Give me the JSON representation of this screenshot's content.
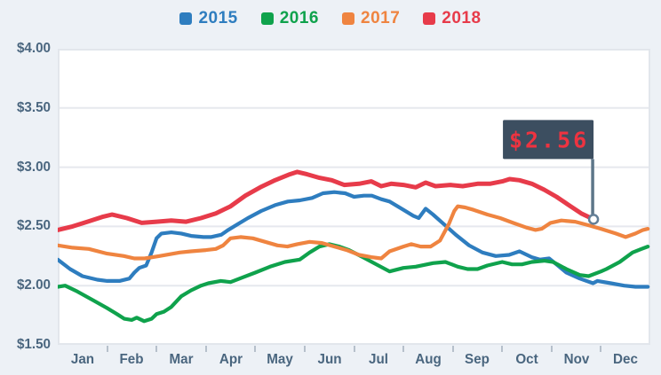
{
  "page": {
    "background": "#edf1f6",
    "plot_background": "#ffffff",
    "border_color": "#e2e6ec",
    "grid_color": "#e6e8ee",
    "label_color": "#4a667f",
    "tick_color": "#b6c0cb"
  },
  "chart_data": {
    "type": "line",
    "title": "",
    "xlabel": "",
    "ylabel": "",
    "grid": true,
    "legend_position": "top",
    "y_ticks": [
      "$4.00",
      "$3.50",
      "$3.00",
      "$2.50",
      "$2.00",
      "$1.50"
    ],
    "y_range": [
      1.5,
      4.0
    ],
    "x_tick_labels": [
      "Jan",
      "Feb",
      "Mar",
      "Apr",
      "May",
      "Jun",
      "Jul",
      "Aug",
      "Sep",
      "Oct",
      "Nov",
      "Dec"
    ],
    "legend": [
      "2015",
      "2016",
      "2017",
      "2018"
    ],
    "series": [
      {
        "name": "2015",
        "color": "#2e7dbf",
        "points": [
          [
            0,
            2.22
          ],
          [
            0.25,
            2.14
          ],
          [
            0.5,
            2.08
          ],
          [
            0.8,
            2.05
          ],
          [
            1.0,
            2.04
          ],
          [
            1.25,
            2.04
          ],
          [
            1.45,
            2.06
          ],
          [
            1.55,
            2.11
          ],
          [
            1.65,
            2.15
          ],
          [
            1.79,
            2.17
          ],
          [
            1.9,
            2.28
          ],
          [
            2.0,
            2.4
          ],
          [
            2.1,
            2.44
          ],
          [
            2.3,
            2.45
          ],
          [
            2.5,
            2.44
          ],
          [
            2.7,
            2.42
          ],
          [
            2.95,
            2.41
          ],
          [
            3.1,
            2.41
          ],
          [
            3.31,
            2.43
          ],
          [
            3.45,
            2.47
          ],
          [
            3.65,
            2.52
          ],
          [
            3.85,
            2.57
          ],
          [
            4.12,
            2.63
          ],
          [
            4.4,
            2.68
          ],
          [
            4.66,
            2.71
          ],
          [
            4.9,
            2.72
          ],
          [
            5.15,
            2.74
          ],
          [
            5.37,
            2.78
          ],
          [
            5.6,
            2.79
          ],
          [
            5.82,
            2.78
          ],
          [
            6.0,
            2.75
          ],
          [
            6.2,
            2.76
          ],
          [
            6.36,
            2.76
          ],
          [
            6.55,
            2.73
          ],
          [
            6.72,
            2.71
          ],
          [
            7.0,
            2.64
          ],
          [
            7.2,
            2.59
          ],
          [
            7.31,
            2.57
          ],
          [
            7.45,
            2.65
          ],
          [
            7.6,
            2.6
          ],
          [
            7.79,
            2.53
          ],
          [
            8.06,
            2.43
          ],
          [
            8.33,
            2.34
          ],
          [
            8.6,
            2.28
          ],
          [
            8.87,
            2.25
          ],
          [
            9.14,
            2.26
          ],
          [
            9.35,
            2.29
          ],
          [
            9.6,
            2.24
          ],
          [
            9.76,
            2.22
          ],
          [
            9.95,
            2.23
          ],
          [
            10.1,
            2.18
          ],
          [
            10.3,
            2.11
          ],
          [
            10.57,
            2.06
          ],
          [
            10.84,
            2.02
          ],
          [
            10.93,
            2.04
          ],
          [
            11.2,
            2.02
          ],
          [
            11.47,
            2.0
          ],
          [
            11.7,
            1.99
          ],
          [
            11.95,
            1.99
          ]
        ]
      },
      {
        "name": "2016",
        "color": "#0fa24c",
        "points": [
          [
            0,
            1.99
          ],
          [
            0.15,
            2.0
          ],
          [
            0.4,
            1.95
          ],
          [
            0.7,
            1.88
          ],
          [
            1.0,
            1.81
          ],
          [
            1.2,
            1.76
          ],
          [
            1.35,
            1.72
          ],
          [
            1.5,
            1.71
          ],
          [
            1.6,
            1.73
          ],
          [
            1.75,
            1.7
          ],
          [
            1.9,
            1.72
          ],
          [
            2.0,
            1.76
          ],
          [
            2.15,
            1.78
          ],
          [
            2.3,
            1.82
          ],
          [
            2.5,
            1.91
          ],
          [
            2.7,
            1.96
          ],
          [
            2.9,
            2.0
          ],
          [
            3.05,
            2.02
          ],
          [
            3.3,
            2.04
          ],
          [
            3.5,
            2.03
          ],
          [
            3.75,
            2.07
          ],
          [
            4.0,
            2.11
          ],
          [
            4.3,
            2.16
          ],
          [
            4.6,
            2.2
          ],
          [
            4.9,
            2.22
          ],
          [
            5.1,
            2.28
          ],
          [
            5.3,
            2.33
          ],
          [
            5.5,
            2.35
          ],
          [
            5.7,
            2.33
          ],
          [
            5.9,
            2.3
          ],
          [
            6.18,
            2.24
          ],
          [
            6.45,
            2.18
          ],
          [
            6.72,
            2.12
          ],
          [
            7.0,
            2.15
          ],
          [
            7.25,
            2.16
          ],
          [
            7.6,
            2.19
          ],
          [
            7.85,
            2.2
          ],
          [
            8.1,
            2.16
          ],
          [
            8.3,
            2.14
          ],
          [
            8.5,
            2.14
          ],
          [
            8.7,
            2.17
          ],
          [
            9.0,
            2.2
          ],
          [
            9.2,
            2.18
          ],
          [
            9.4,
            2.18
          ],
          [
            9.6,
            2.2
          ],
          [
            9.85,
            2.21
          ],
          [
            10.03,
            2.2
          ],
          [
            10.3,
            2.14
          ],
          [
            10.57,
            2.09
          ],
          [
            10.75,
            2.08
          ],
          [
            11.0,
            2.12
          ],
          [
            11.11,
            2.14
          ],
          [
            11.38,
            2.2
          ],
          [
            11.64,
            2.28
          ],
          [
            11.82,
            2.31
          ],
          [
            11.95,
            2.33
          ]
        ]
      },
      {
        "name": "2017",
        "color": "#ef8440",
        "points": [
          [
            0,
            2.34
          ],
          [
            0.3,
            2.32
          ],
          [
            0.63,
            2.31
          ],
          [
            1.0,
            2.27
          ],
          [
            1.34,
            2.25
          ],
          [
            1.55,
            2.23
          ],
          [
            1.76,
            2.23
          ],
          [
            2.06,
            2.25
          ],
          [
            2.47,
            2.28
          ],
          [
            2.7,
            2.29
          ],
          [
            3.0,
            2.3
          ],
          [
            3.2,
            2.31
          ],
          [
            3.35,
            2.34
          ],
          [
            3.5,
            2.4
          ],
          [
            3.7,
            2.41
          ],
          [
            3.95,
            2.4
          ],
          [
            4.2,
            2.37
          ],
          [
            4.45,
            2.34
          ],
          [
            4.65,
            2.33
          ],
          [
            4.85,
            2.35
          ],
          [
            5.1,
            2.37
          ],
          [
            5.35,
            2.36
          ],
          [
            5.6,
            2.33
          ],
          [
            5.85,
            2.3
          ],
          [
            6.1,
            2.26
          ],
          [
            6.35,
            2.24
          ],
          [
            6.55,
            2.23
          ],
          [
            6.72,
            2.29
          ],
          [
            7.0,
            2.33
          ],
          [
            7.16,
            2.35
          ],
          [
            7.35,
            2.33
          ],
          [
            7.55,
            2.33
          ],
          [
            7.74,
            2.38
          ],
          [
            7.92,
            2.52
          ],
          [
            8.03,
            2.63
          ],
          [
            8.1,
            2.67
          ],
          [
            8.25,
            2.66
          ],
          [
            8.42,
            2.64
          ],
          [
            8.7,
            2.6
          ],
          [
            8.96,
            2.57
          ],
          [
            9.22,
            2.53
          ],
          [
            9.49,
            2.49
          ],
          [
            9.67,
            2.47
          ],
          [
            9.8,
            2.48
          ],
          [
            9.98,
            2.53
          ],
          [
            10.2,
            2.55
          ],
          [
            10.48,
            2.54
          ],
          [
            10.75,
            2.51
          ],
          [
            11.0,
            2.48
          ],
          [
            11.3,
            2.44
          ],
          [
            11.5,
            2.41
          ],
          [
            11.7,
            2.44
          ],
          [
            11.85,
            2.47
          ],
          [
            11.95,
            2.48
          ]
        ]
      },
      {
        "name": "2018",
        "color": "#e73b4a",
        "points": [
          [
            0,
            2.47
          ],
          [
            0.3,
            2.5
          ],
          [
            0.6,
            2.54
          ],
          [
            0.9,
            2.58
          ],
          [
            1.1,
            2.6
          ],
          [
            1.4,
            2.57
          ],
          [
            1.7,
            2.53
          ],
          [
            2.0,
            2.54
          ],
          [
            2.3,
            2.55
          ],
          [
            2.6,
            2.54
          ],
          [
            2.9,
            2.57
          ],
          [
            3.2,
            2.61
          ],
          [
            3.5,
            2.67
          ],
          [
            3.8,
            2.76
          ],
          [
            4.1,
            2.83
          ],
          [
            4.4,
            2.89
          ],
          [
            4.7,
            2.94
          ],
          [
            4.85,
            2.96
          ],
          [
            5.05,
            2.94
          ],
          [
            5.3,
            2.91
          ],
          [
            5.55,
            2.89
          ],
          [
            5.8,
            2.85
          ],
          [
            6.1,
            2.86
          ],
          [
            6.35,
            2.88
          ],
          [
            6.55,
            2.84
          ],
          [
            6.75,
            2.86
          ],
          [
            7.0,
            2.85
          ],
          [
            7.25,
            2.83
          ],
          [
            7.45,
            2.87
          ],
          [
            7.65,
            2.84
          ],
          [
            7.95,
            2.85
          ],
          [
            8.2,
            2.84
          ],
          [
            8.5,
            2.86
          ],
          [
            8.75,
            2.86
          ],
          [
            9.0,
            2.88
          ],
          [
            9.15,
            2.9
          ],
          [
            9.35,
            2.89
          ],
          [
            9.6,
            2.86
          ],
          [
            9.85,
            2.81
          ],
          [
            10.1,
            2.75
          ],
          [
            10.35,
            2.68
          ],
          [
            10.6,
            2.61
          ],
          [
            10.85,
            2.56
          ]
        ]
      }
    ],
    "annotation": {
      "label": "$2.56",
      "series": "2018",
      "month": 10.85,
      "value": 2.56,
      "box_color": "#3c4e60",
      "text_color": "#ee3340",
      "pole_color": "#5d7689",
      "marker_stroke": "#647f97",
      "marker_fill": "#ffffff"
    }
  }
}
